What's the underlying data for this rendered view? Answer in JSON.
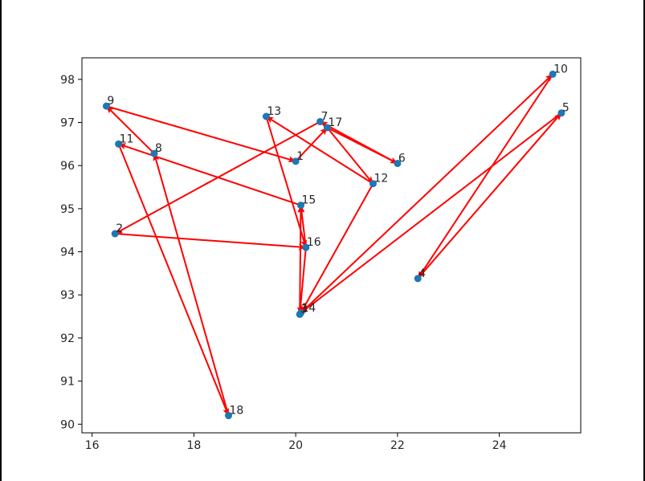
{
  "chart_data": {
    "type": "scatter",
    "title": "",
    "xlabel": "",
    "ylabel": "",
    "xlim": [
      15.8,
      25.6
    ],
    "ylim": [
      89.8,
      98.5
    ],
    "xticks": [
      16,
      18,
      20,
      22,
      24
    ],
    "yticks": [
      90,
      91,
      92,
      93,
      94,
      95,
      96,
      97,
      98
    ],
    "grid": false,
    "point_color": "#1f77b4",
    "arrow_color": "#ff0000",
    "points": [
      {
        "label": "1",
        "x": 20.0,
        "y": 96.1
      },
      {
        "label": "2",
        "x": 16.45,
        "y": 94.42
      },
      {
        "label": "3",
        "x": 20.08,
        "y": 92.55
      },
      {
        "label": "4",
        "x": 22.4,
        "y": 93.38
      },
      {
        "label": "5",
        "x": 25.22,
        "y": 97.22
      },
      {
        "label": "6",
        "x": 22.0,
        "y": 96.05
      },
      {
        "label": "7",
        "x": 20.48,
        "y": 97.02
      },
      {
        "label": "8",
        "x": 17.22,
        "y": 96.28
      },
      {
        "label": "9",
        "x": 16.28,
        "y": 97.38
      },
      {
        "label": "10",
        "x": 25.05,
        "y": 98.12
      },
      {
        "label": "11",
        "x": 16.52,
        "y": 96.5
      },
      {
        "label": "12",
        "x": 21.52,
        "y": 95.58
      },
      {
        "label": "13",
        "x": 19.42,
        "y": 97.14
      },
      {
        "label": "14",
        "x": 20.1,
        "y": 92.58
      },
      {
        "label": "15",
        "x": 20.1,
        "y": 95.08
      },
      {
        "label": "16",
        "x": 20.2,
        "y": 94.1
      },
      {
        "label": "17",
        "x": 20.62,
        "y": 96.88
      },
      {
        "label": "18",
        "x": 18.68,
        "y": 90.2
      }
    ],
    "arrows": [
      {
        "from": "1",
        "to": "17"
      },
      {
        "from": "17",
        "to": "6"
      },
      {
        "from": "6",
        "to": "7"
      },
      {
        "from": "7",
        "to": "2"
      },
      {
        "from": "2",
        "to": "16"
      },
      {
        "from": "16",
        "to": "15"
      },
      {
        "from": "15",
        "to": "11"
      },
      {
        "from": "11",
        "to": "18"
      },
      {
        "from": "18",
        "to": "8"
      },
      {
        "from": "8",
        "to": "9"
      },
      {
        "from": "9",
        "to": "1"
      },
      {
        "from": "17",
        "to": "12"
      },
      {
        "from": "12",
        "to": "13"
      },
      {
        "from": "13",
        "to": "16"
      },
      {
        "from": "16",
        "to": "3"
      },
      {
        "from": "3",
        "to": "15"
      },
      {
        "from": "12",
        "to": "14"
      },
      {
        "from": "14",
        "to": "10"
      },
      {
        "from": "10",
        "to": "4"
      },
      {
        "from": "4",
        "to": "5"
      },
      {
        "from": "5",
        "to": "14"
      }
    ]
  }
}
